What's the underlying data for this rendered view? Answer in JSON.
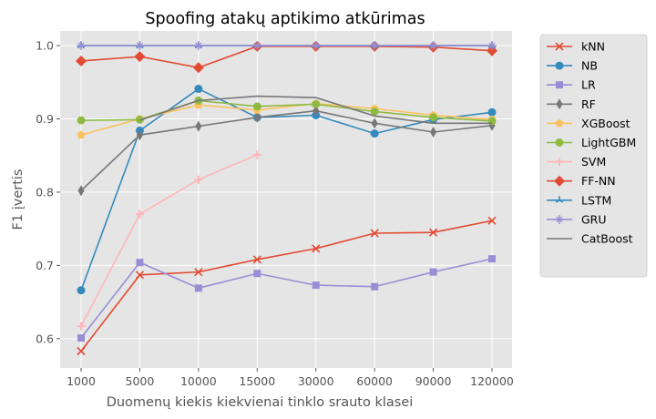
{
  "chart_data": {
    "type": "line",
    "title": "Spoofing atakų aptikimo atkūrimas",
    "xlabel": "Duomenų kiekis kiekvienai tinklo srauto klasei",
    "ylabel": "F1 įvertis",
    "categories": [
      "1000",
      "5000",
      "10000",
      "15000",
      "30000",
      "60000",
      "90000",
      "120000"
    ],
    "ylim": [
      0.56,
      1.02
    ],
    "yticks": [
      "0.6",
      "0.7",
      "0.8",
      "0.9",
      "1.0"
    ],
    "grid": true,
    "legend": "outside-right",
    "series": [
      {
        "name": "kNN",
        "color": "#E24A33",
        "marker": "x",
        "values": [
          0.583,
          0.687,
          0.691,
          0.708,
          0.723,
          0.744,
          0.745,
          0.761
        ]
      },
      {
        "name": "NB",
        "color": "#348ABD",
        "marker": "circle",
        "values": [
          0.666,
          0.884,
          0.941,
          0.902,
          0.905,
          0.88,
          0.899,
          0.909
        ]
      },
      {
        "name": "LR",
        "color": "#988ED5",
        "marker": "square",
        "values": [
          0.601,
          0.704,
          0.669,
          0.689,
          0.673,
          0.671,
          0.691,
          0.709
        ]
      },
      {
        "name": "RF",
        "color": "#777777",
        "marker": "thin-diamond",
        "values": [
          0.802,
          0.878,
          0.89,
          0.902,
          0.911,
          0.894,
          0.882,
          0.891
        ]
      },
      {
        "name": "XGBoost",
        "color": "#FBC15E",
        "marker": "pentagon",
        "values": [
          0.878,
          0.9,
          0.919,
          0.912,
          0.921,
          0.914,
          0.905,
          0.899
        ]
      },
      {
        "name": "LightGBM",
        "color": "#8EBA42",
        "marker": "octagon",
        "values": [
          0.898,
          0.899,
          0.925,
          0.917,
          0.92,
          0.91,
          0.902,
          0.897
        ]
      },
      {
        "name": "SVM",
        "color": "#FFB5B8",
        "marker": "plus",
        "values": [
          0.617,
          0.77,
          0.817,
          0.851,
          null,
          null,
          null,
          null
        ]
      },
      {
        "name": "FF-NN",
        "color": "#E24A33",
        "marker": "diamond",
        "values": [
          0.979,
          0.985,
          0.97,
          0.999,
          0.999,
          0.999,
          0.998,
          0.993
        ]
      },
      {
        "name": "LSTM",
        "color": "#348ABD",
        "marker": "tri",
        "values": [
          1.0,
          1.0,
          1.0,
          1.0,
          1.0,
          1.0,
          1.0,
          1.0
        ]
      },
      {
        "name": "GRU",
        "color": "#988ED5",
        "marker": "star",
        "values": [
          1.0,
          1.0,
          1.0,
          1.0,
          1.0,
          1.0,
          1.0,
          1.0
        ]
      },
      {
        "name": "CatBoost",
        "color": "#777777",
        "marker": "none",
        "values": [
          null,
          0.898,
          0.925,
          0.931,
          0.929,
          0.904,
          0.894,
          0.894
        ]
      }
    ]
  }
}
